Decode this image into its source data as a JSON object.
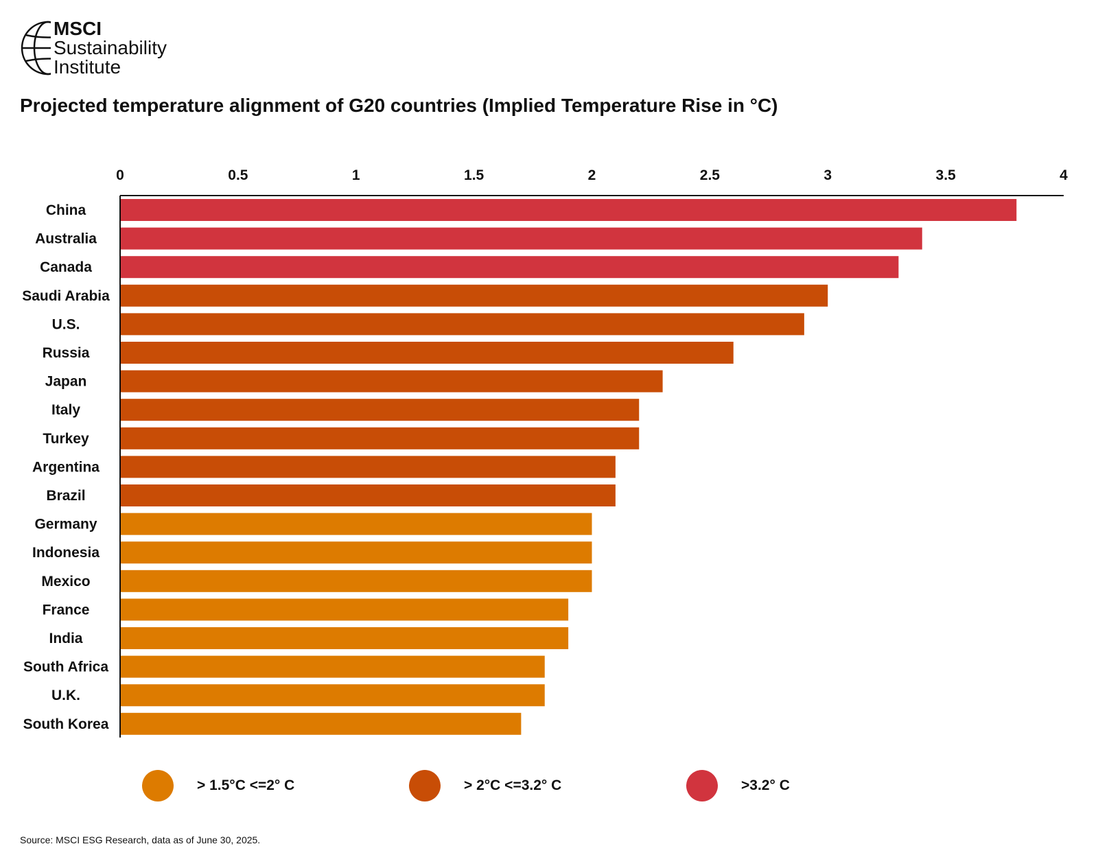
{
  "logo": {
    "brand": "MSCI",
    "line1": "Sustainability",
    "line2": "Institute",
    "icon": "globe-icon"
  },
  "title": "Projected temperature alignment of G20 countries (Implied Temperature Rise in °C)",
  "source": "Source: MSCI ESG Research, data as of June 30, 2025.",
  "colors": {
    "low": "#DD7B00",
    "mid": "#C84D06",
    "high": "#D1343E",
    "axis": "#111111"
  },
  "legend": [
    {
      "label": "> 1.5°C <=2° C",
      "color": "#DD7B00"
    },
    {
      "label": "> 2°C <=3.2° C",
      "color": "#C84D06"
    },
    {
      "label": ">3.2° C",
      "color": "#D1343E"
    }
  ],
  "chart_data": {
    "type": "bar",
    "orientation": "horizontal",
    "title": "Projected temperature alignment of G20 countries (Implied Temperature Rise in °C)",
    "xlabel": "",
    "ylabel": "",
    "xlim": [
      0,
      4
    ],
    "ticks": [
      "0",
      "0.5",
      "1",
      "1.5",
      "2",
      "2.5",
      "3",
      "3.5",
      "4"
    ],
    "tick_values": [
      0,
      0.5,
      1,
      1.5,
      2,
      2.5,
      3,
      3.5,
      4
    ],
    "axis_position": "top",
    "grid": false,
    "categories": [
      "China",
      "Australia",
      "Canada",
      "Saudi Arabia",
      "U.S.",
      "Russia",
      "Japan",
      "Italy",
      "Turkey",
      "Argentina",
      "Brazil",
      "Germany",
      "Indonesia",
      "Mexico",
      "France",
      "India",
      "South Africa",
      "U.K.",
      "South Korea"
    ],
    "values": [
      3.8,
      3.4,
      3.3,
      3.0,
      2.9,
      2.6,
      2.3,
      2.2,
      2.2,
      2.1,
      2.1,
      2.0,
      2.0,
      2.0,
      1.9,
      1.9,
      1.8,
      1.8,
      1.7
    ],
    "bar_groups": [
      "high",
      "high",
      "high",
      "mid",
      "mid",
      "mid",
      "mid",
      "mid",
      "mid",
      "mid",
      "mid",
      "low",
      "low",
      "low",
      "low",
      "low",
      "low",
      "low",
      "low"
    ]
  }
}
